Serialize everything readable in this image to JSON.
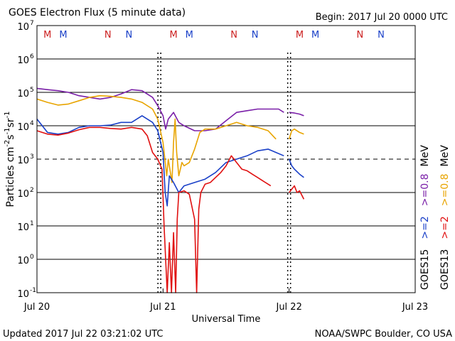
{
  "header": {
    "title": "GOES Electron Flux (5 minute data)",
    "begin": "Begin: 2017 Jul 20 0000 UTC"
  },
  "footer": {
    "updated": "Updated 2017 Jul 22 03:21:02 UTC",
    "credit": "NOAA/SWPC Boulder, CO USA"
  },
  "colors": {
    "purple": "#7a1fa8",
    "orange": "#e8a400",
    "blue": "#1a40c8",
    "red": "#e01010",
    "marker_red": "#cc2020",
    "marker_blue": "#1a40c8"
  },
  "chart_data": {
    "type": "line",
    "title": "GOES Electron Flux (5 minute data)",
    "xlabel": "Universal Time",
    "ylabel": "Particles cm-2s-1sr-1",
    "ylabel_parts": {
      "base": "Particles cm",
      "exp1": "-2",
      "mid1": "s",
      "exp2": "-1",
      "mid2": "sr",
      "exp3": "-1"
    },
    "xlim": [
      0,
      72
    ],
    "ylim_exponent": [
      -1,
      7
    ],
    "yscale": "log",
    "x_ticks": [
      {
        "label": "Jul 20",
        "hour": 0
      },
      {
        "label": "Jul 21",
        "hour": 24
      },
      {
        "label": "Jul 22",
        "hour": 48
      },
      {
        "label": "Jul 23",
        "hour": 72
      }
    ],
    "y_ticks": [
      {
        "base": "10",
        "exp": "-1",
        "value": -1
      },
      {
        "base": "10",
        "exp": "0",
        "value": 0
      },
      {
        "base": "10",
        "exp": "1",
        "value": 1
      },
      {
        "base": "10",
        "exp": "2",
        "value": 2
      },
      {
        "base": "10",
        "exp": "3",
        "value": 3
      },
      {
        "base": "10",
        "exp": "4",
        "value": 4
      },
      {
        "base": "10",
        "exp": "5",
        "value": 5
      },
      {
        "base": "10",
        "exp": "6",
        "value": 6
      },
      {
        "base": "10",
        "exp": "7",
        "value": 7
      }
    ],
    "threshold_log": 3,
    "day_markers": [
      {
        "hour": 24,
        "markers": [
          {
            "label": "M",
            "color": "marker_red",
            "hour": 26.0
          },
          {
            "label": "M",
            "color": "marker_blue",
            "hour": 29.0
          },
          {
            "label": "N",
            "color": "marker_red",
            "hour": 37.5
          },
          {
            "label": "N",
            "color": "marker_blue",
            "hour": 41.5
          }
        ]
      },
      {
        "hour": 0,
        "markers": [
          {
            "label": "M",
            "color": "marker_red",
            "hour": 2.0
          },
          {
            "label": "M",
            "color": "marker_blue",
            "hour": 5.0
          },
          {
            "label": "N",
            "color": "marker_red",
            "hour": 13.5
          },
          {
            "label": "N",
            "color": "marker_blue",
            "hour": 17.5
          }
        ]
      },
      {
        "hour": 48,
        "markers": [
          {
            "label": "M",
            "color": "marker_red",
            "hour": 50.0
          },
          {
            "label": "M",
            "color": "marker_blue",
            "hour": 53.0
          },
          {
            "label": "N",
            "color": "marker_red",
            "hour": 61.5
          },
          {
            "label": "N",
            "color": "marker_blue",
            "hour": 65.5
          }
        ]
      }
    ],
    "dashed_verticals": [
      23.3,
      48.0
    ],
    "legend": [
      {
        "text": "GOES15",
        "color": "#000000"
      },
      {
        "text": ">=2",
        "color": "#1a40c8"
      },
      {
        "text": ">=0.8",
        "color": "#7a1fa8"
      },
      {
        "text": "MeV",
        "color": "#000000"
      },
      {
        "text": "GOES13",
        "color": "#000000"
      },
      {
        "text": ">=2",
        "color": "#e01010"
      },
      {
        "text": ">=0.8",
        "color": "#e8a400"
      },
      {
        "text": "MeV",
        "color": "#000000"
      }
    ],
    "series": [
      {
        "name": "GOES15 >=0.8 MeV",
        "color": "purple",
        "segments": [
          [
            [
              0,
              5.12
            ],
            [
              2,
              5.08
            ],
            [
              4,
              5.05
            ],
            [
              6,
              5.0
            ],
            [
              8,
              4.9
            ],
            [
              10,
              4.85
            ],
            [
              12,
              4.8
            ],
            [
              14,
              4.85
            ],
            [
              16,
              4.95
            ],
            [
              18,
              5.08
            ],
            [
              20,
              5.05
            ],
            [
              22,
              4.85
            ],
            [
              23,
              4.6
            ],
            [
              24,
              4.3
            ],
            [
              24.5,
              3.9
            ],
            [
              25,
              4.2
            ],
            [
              26,
              4.4
            ],
            [
              27,
              4.1
            ],
            [
              28,
              4.0
            ],
            [
              30,
              3.85
            ],
            [
              32,
              3.85
            ],
            [
              34,
              3.9
            ],
            [
              36,
              4.15
            ],
            [
              38,
              4.4
            ],
            [
              40,
              4.45
            ],
            [
              42,
              4.5
            ],
            [
              44,
              4.5
            ],
            [
              46,
              4.5
            ],
            [
              47,
              4.4
            ]
          ],
          [
            [
              48,
              4.4
            ],
            [
              49,
              4.38
            ],
            [
              50,
              4.35
            ],
            [
              50.8,
              4.3
            ]
          ]
        ]
      },
      {
        "name": "GOES13 >=0.8 MeV",
        "color": "orange",
        "segments": [
          [
            [
              0,
              4.8
            ],
            [
              2,
              4.7
            ],
            [
              4,
              4.62
            ],
            [
              6,
              4.65
            ],
            [
              8,
              4.75
            ],
            [
              10,
              4.85
            ],
            [
              12,
              4.9
            ],
            [
              14,
              4.88
            ],
            [
              16,
              4.85
            ],
            [
              18,
              4.8
            ],
            [
              20,
              4.7
            ],
            [
              22,
              4.5
            ],
            [
              23,
              4.2
            ],
            [
              24,
              3.5
            ],
            [
              24.7,
              2.5
            ],
            [
              25,
              3.0
            ],
            [
              25.7,
              2.3
            ],
            [
              26,
              3.5
            ],
            [
              26.3,
              4.2
            ],
            [
              26.6,
              3.2
            ],
            [
              27,
              2.5
            ],
            [
              27.6,
              2.9
            ],
            [
              28,
              2.8
            ],
            [
              29,
              2.9
            ],
            [
              30,
              3.3
            ],
            [
              31,
              3.8
            ],
            [
              32,
              3.9
            ],
            [
              34,
              3.9
            ],
            [
              36,
              4.0
            ],
            [
              38,
              4.1
            ],
            [
              40,
              4.0
            ],
            [
              42,
              3.95
            ],
            [
              44,
              3.85
            ],
            [
              45.5,
              3.6
            ]
          ],
          [
            [
              48,
              3.6
            ],
            [
              48.5,
              3.85
            ],
            [
              49,
              3.9
            ],
            [
              50,
              3.8
            ],
            [
              50.8,
              3.75
            ]
          ]
        ]
      },
      {
        "name": "GOES15 >=2 MeV",
        "color": "blue",
        "segments": [
          [
            [
              0,
              4.2
            ],
            [
              2,
              3.8
            ],
            [
              4,
              3.75
            ],
            [
              6,
              3.8
            ],
            [
              8,
              3.95
            ],
            [
              10,
              4.0
            ],
            [
              12,
              4.0
            ],
            [
              14,
              4.02
            ],
            [
              16,
              4.1
            ],
            [
              18,
              4.1
            ],
            [
              20,
              4.3
            ],
            [
              22,
              4.1
            ],
            [
              23,
              3.85
            ],
            [
              24,
              3.2
            ],
            [
              24.4,
              2.0
            ],
            [
              24.8,
              1.6
            ],
            [
              25.2,
              2.5
            ],
            [
              26,
              2.3
            ],
            [
              27,
              2.0
            ],
            [
              28,
              2.2
            ],
            [
              30,
              2.3
            ],
            [
              32,
              2.4
            ],
            [
              34,
              2.6
            ],
            [
              36,
              2.9
            ],
            [
              38,
              3.0
            ],
            [
              40,
              3.1
            ],
            [
              42,
              3.25
            ],
            [
              44,
              3.3
            ],
            [
              45.5,
              3.2
            ],
            [
              47,
              3.1
            ]
          ],
          [
            [
              48,
              3.0
            ],
            [
              48.5,
              2.8
            ],
            [
              49,
              2.7
            ],
            [
              50,
              2.55
            ],
            [
              50.8,
              2.45
            ]
          ]
        ]
      },
      {
        "name": "GOES13 >=2 MeV",
        "color": "red",
        "segments": [
          [
            [
              0,
              3.85
            ],
            [
              2,
              3.75
            ],
            [
              4,
              3.72
            ],
            [
              6,
              3.78
            ],
            [
              8,
              3.88
            ],
            [
              10,
              3.95
            ],
            [
              12,
              3.95
            ],
            [
              14,
              3.92
            ],
            [
              16,
              3.9
            ],
            [
              18,
              3.95
            ],
            [
              20,
              3.9
            ],
            [
              21,
              3.7
            ],
            [
              22,
              3.2
            ],
            [
              23,
              3.0
            ],
            [
              23.8,
              2.7
            ],
            [
              24.2,
              1.0
            ],
            [
              24.8,
              -1.0
            ],
            [
              25.2,
              0.5
            ],
            [
              25.6,
              -1.0
            ],
            [
              26,
              0.8
            ],
            [
              26.4,
              -1.0
            ],
            [
              26.7,
              1.2
            ],
            [
              27,
              2.0
            ],
            [
              28,
              2.05
            ],
            [
              29,
              1.95
            ],
            [
              30,
              1.2
            ],
            [
              30.4,
              -1.0
            ],
            [
              30.8,
              1.5
            ],
            [
              31.2,
              2.0
            ],
            [
              32,
              2.25
            ],
            [
              33,
              2.3
            ],
            [
              34,
              2.45
            ],
            [
              35,
              2.6
            ],
            [
              36,
              2.8
            ],
            [
              37,
              3.1
            ],
            [
              38,
              2.9
            ],
            [
              39,
              2.7
            ],
            [
              40,
              2.65
            ],
            [
              41,
              2.55
            ],
            [
              42,
              2.45
            ],
            [
              43,
              2.35
            ],
            [
              44.5,
              2.2
            ]
          ],
          [
            [
              48,
              2.0
            ],
            [
              48.5,
              2.1
            ],
            [
              49,
              2.2
            ],
            [
              49.5,
              2.0
            ],
            [
              50,
              2.05
            ],
            [
              50.8,
              1.8
            ]
          ]
        ]
      }
    ]
  }
}
